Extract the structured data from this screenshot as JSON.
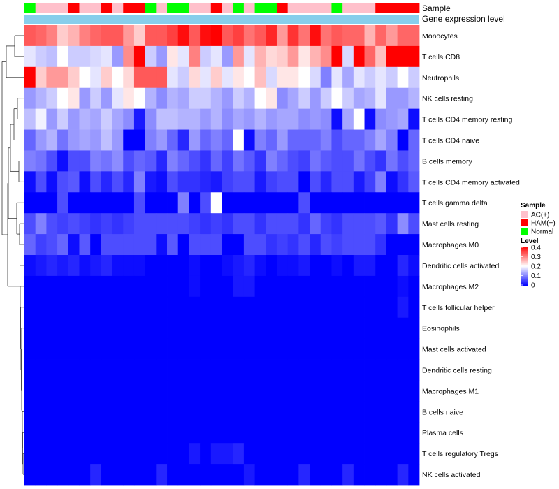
{
  "chart_data": {
    "type": "heatmap",
    "annotation_labels": [
      "Sample",
      "Gene expression level"
    ],
    "annotation_bar_color": "#87CEEB",
    "columns": 36,
    "sample_groups": [
      "Normal",
      "AC(+)",
      "AC(+)",
      "AC(+)",
      "HAM(+)",
      "AC(+)",
      "AC(+)",
      "HAM(+)",
      "AC(+)",
      "HAM(+)",
      "HAM(+)",
      "Normal",
      "AC(+)",
      "Normal",
      "Normal",
      "AC(+)",
      "AC(+)",
      "HAM(+)",
      "AC(+)",
      "Normal",
      "AC(+)",
      "Normal",
      "Normal",
      "HAM(+)",
      "AC(+)",
      "AC(+)",
      "AC(+)",
      "AC(+)",
      "Normal",
      "AC(+)",
      "AC(+)",
      "AC(+)",
      "HAM(+)",
      "HAM(+)",
      "HAM(+)",
      "HAM(+)"
    ],
    "rows": [
      "Monocytes",
      "T cells CD8",
      "Neutrophils",
      "NK cells resting",
      "T cells CD4 memory resting",
      "T cells CD4 naive",
      "B cells memory",
      "T cells CD4 memory activated",
      "T cells gamma delta",
      "Mast cells resting",
      "Macrophages M0",
      "Dendritic cells activated",
      "Macrophages M2",
      "T cells follicular helper",
      "Eosinophils",
      "Mast cells activated",
      "Dendritic cells resting",
      "Macrophages M1",
      "B cells naive",
      "Plasma cells",
      "T cells regulatory  Tregs",
      "NK cells activated"
    ],
    "values": [
      [
        0.33,
        0.32,
        0.3,
        0.24,
        0.26,
        0.3,
        0.32,
        0.33,
        0.33,
        0.28,
        0.24,
        0.33,
        0.33,
        0.35,
        0.39,
        0.33,
        0.39,
        0.4,
        0.33,
        0.35,
        0.31,
        0.33,
        0.37,
        0.28,
        0.36,
        0.31,
        0.39,
        0.31,
        0.33,
        0.32,
        0.32,
        0.26,
        0.32,
        0.28,
        0.32,
        0.32
      ],
      [
        0.18,
        0.16,
        0.15,
        0.2,
        0.16,
        0.16,
        0.17,
        0.18,
        0.12,
        0.29,
        0.4,
        0.16,
        0.12,
        0.22,
        0.18,
        0.3,
        0.16,
        0.18,
        0.12,
        0.28,
        0.18,
        0.26,
        0.23,
        0.24,
        0.28,
        0.22,
        0.26,
        0.29,
        0.4,
        0.17,
        0.4,
        0.32,
        0.25,
        0.4,
        0.4,
        0.4
      ],
      [
        0.4,
        0.24,
        0.28,
        0.28,
        0.24,
        0.2,
        0.18,
        0.24,
        0.2,
        0.23,
        0.33,
        0.33,
        0.33,
        0.18,
        0.16,
        0.23,
        0.18,
        0.24,
        0.18,
        0.22,
        0.2,
        0.25,
        0.17,
        0.22,
        0.22,
        0.2,
        0.17,
        0.1,
        0.18,
        0.13,
        0.18,
        0.16,
        0.18,
        0.16,
        0.2,
        0.16
      ],
      [
        0.12,
        0.14,
        0.16,
        0.2,
        0.22,
        0.12,
        0.16,
        0.12,
        0.18,
        0.22,
        0.2,
        0.14,
        0.11,
        0.14,
        0.13,
        0.16,
        0.16,
        0.14,
        0.12,
        0.16,
        0.14,
        0.2,
        0.22,
        0.11,
        0.13,
        0.16,
        0.12,
        0.16,
        0.2,
        0.16,
        0.13,
        0.14,
        0.18,
        0.12,
        0.12,
        0.14
      ],
      [
        0.15,
        0.19,
        0.12,
        0.16,
        0.12,
        0.14,
        0.13,
        0.16,
        0.13,
        0.11,
        0.02,
        0.11,
        0.15,
        0.15,
        0.14,
        0.14,
        0.12,
        0.14,
        0.11,
        0.13,
        0.12,
        0.14,
        0.12,
        0.13,
        0.13,
        0.11,
        0.12,
        0.11,
        0.01,
        0.13,
        0.2,
        0.01,
        0.11,
        0.12,
        0.13,
        0.01
      ],
      [
        0.08,
        0.12,
        0.14,
        0.09,
        0.12,
        0.13,
        0.12,
        0.15,
        0.12,
        0.0,
        0.0,
        0.1,
        0.12,
        0.08,
        0.03,
        0.12,
        0.08,
        0.1,
        0.08,
        0.2,
        0.01,
        0.1,
        0.08,
        0.12,
        0.08,
        0.08,
        0.08,
        0.1,
        0.06,
        0.08,
        0.08,
        0.1,
        0.13,
        0.1,
        0.0,
        0.08
      ],
      [
        0.1,
        0.09,
        0.06,
        0.01,
        0.06,
        0.06,
        0.1,
        0.09,
        0.11,
        0.06,
        0.08,
        0.07,
        0.03,
        0.1,
        0.08,
        0.06,
        0.04,
        0.08,
        0.05,
        0.09,
        0.07,
        0.04,
        0.1,
        0.08,
        0.06,
        0.05,
        0.09,
        0.07,
        0.06,
        0.06,
        0.09,
        0.06,
        0.04,
        0.09,
        0.06,
        0.08
      ],
      [
        0.01,
        0.06,
        0.01,
        0.06,
        0.07,
        0.01,
        0.06,
        0.03,
        0.06,
        0.03,
        0.1,
        0.02,
        0.01,
        0.06,
        0.04,
        0.04,
        0.03,
        0.02,
        0.05,
        0.06,
        0.06,
        0.02,
        0.05,
        0.06,
        0.06,
        0.0,
        0.06,
        0.03,
        0.06,
        0.06,
        0.02,
        0.05,
        0.1,
        0.01,
        0.04,
        0.07
      ],
      [
        0.0,
        0.0,
        0.0,
        0.06,
        0.0,
        0.0,
        0.0,
        0.0,
        0.0,
        0.0,
        0.06,
        0.0,
        0.0,
        0.0,
        0.1,
        0.0,
        0.06,
        0.2,
        0.0,
        0.0,
        0.0,
        0.0,
        0.0,
        0.0,
        0.0,
        0.06,
        0.0,
        0.0,
        0.0,
        0.0,
        0.0,
        0.0,
        0.0,
        0.0,
        0.0,
        0.0
      ],
      [
        0.06,
        0.1,
        0.06,
        0.05,
        0.06,
        0.05,
        0.04,
        0.05,
        0.04,
        0.05,
        0.06,
        0.06,
        0.06,
        0.06,
        0.06,
        0.05,
        0.04,
        0.05,
        0.04,
        0.06,
        0.06,
        0.04,
        0.06,
        0.06,
        0.06,
        0.04,
        0.08,
        0.05,
        0.04,
        0.06,
        0.06,
        0.06,
        0.07,
        0.04,
        0.11,
        0.06
      ],
      [
        0.08,
        0.05,
        0.06,
        0.08,
        0.01,
        0.07,
        0.0,
        0.06,
        0.06,
        0.06,
        0.06,
        0.06,
        0.01,
        0.07,
        0.0,
        0.06,
        0.06,
        0.06,
        0.0,
        0.0,
        0.06,
        0.06,
        0.04,
        0.05,
        0.04,
        0.06,
        0.03,
        0.06,
        0.05,
        0.06,
        0.06,
        0.06,
        0.04,
        0.0,
        0.0,
        0.0
      ],
      [
        0.01,
        0.02,
        0.03,
        0.02,
        0.03,
        0.01,
        0.02,
        0.03,
        0.01,
        0.01,
        0.01,
        0.0,
        0.0,
        0.0,
        0.0,
        0.01,
        0.0,
        0.0,
        0.01,
        0.02,
        0.03,
        0.01,
        0.0,
        0.01,
        0.01,
        0.02,
        0.0,
        0.0,
        0.01,
        0.0,
        0.02,
        0.02,
        0.0,
        0.0,
        0.03,
        0.01
      ],
      [
        0.0,
        0.0,
        0.0,
        0.0,
        0.0,
        0.0,
        0.0,
        0.0,
        0.0,
        0.0,
        0.0,
        0.0,
        0.0,
        0.0,
        0.0,
        0.01,
        0.0,
        0.0,
        0.0,
        0.02,
        0.02,
        0.0,
        0.0,
        0.0,
        0.0,
        0.0,
        0.0,
        0.0,
        0.0,
        0.0,
        0.0,
        0.0,
        0.0,
        0.0,
        0.01,
        0.0
      ],
      [
        0.0,
        0.0,
        0.0,
        0.0,
        0.0,
        0.0,
        0.0,
        0.0,
        0.0,
        0.0,
        0.0,
        0.0,
        0.0,
        0.0,
        0.0,
        0.0,
        0.0,
        0.0,
        0.0,
        0.0,
        0.0,
        0.0,
        0.0,
        0.0,
        0.0,
        0.0,
        0.0,
        0.0,
        0.0,
        0.0,
        0.0,
        0.0,
        0.0,
        0.0,
        0.02,
        0.0
      ],
      [
        0.0,
        0.0,
        0.0,
        0.0,
        0.0,
        0.0,
        0.0,
        0.0,
        0.0,
        0.0,
        0.0,
        0.0,
        0.0,
        0.0,
        0.0,
        0.0,
        0.0,
        0.0,
        0.0,
        0.0,
        0.0,
        0.0,
        0.0,
        0.0,
        0.0,
        0.0,
        0.0,
        0.0,
        0.0,
        0.0,
        0.0,
        0.0,
        0.0,
        0.0,
        0.0,
        0.0
      ],
      [
        0.0,
        0.0,
        0.0,
        0.0,
        0.0,
        0.0,
        0.0,
        0.0,
        0.0,
        0.0,
        0.0,
        0.0,
        0.0,
        0.0,
        0.0,
        0.0,
        0.0,
        0.0,
        0.0,
        0.0,
        0.0,
        0.0,
        0.0,
        0.0,
        0.0,
        0.0,
        0.0,
        0.0,
        0.0,
        0.0,
        0.0,
        0.0,
        0.0,
        0.0,
        0.0,
        0.0
      ],
      [
        0.0,
        0.0,
        0.0,
        0.0,
        0.0,
        0.0,
        0.0,
        0.0,
        0.0,
        0.0,
        0.0,
        0.0,
        0.0,
        0.0,
        0.0,
        0.0,
        0.0,
        0.0,
        0.0,
        0.0,
        0.0,
        0.0,
        0.0,
        0.0,
        0.0,
        0.0,
        0.0,
        0.0,
        0.0,
        0.0,
        0.0,
        0.0,
        0.0,
        0.0,
        0.0,
        0.0
      ],
      [
        0.0,
        0.0,
        0.0,
        0.0,
        0.0,
        0.0,
        0.0,
        0.0,
        0.0,
        0.0,
        0.0,
        0.0,
        0.0,
        0.0,
        0.0,
        0.0,
        0.0,
        0.0,
        0.0,
        0.0,
        0.0,
        0.0,
        0.0,
        0.0,
        0.0,
        0.0,
        0.0,
        0.0,
        0.0,
        0.0,
        0.0,
        0.0,
        0.0,
        0.0,
        0.0,
        0.0
      ],
      [
        0.0,
        0.0,
        0.0,
        0.0,
        0.0,
        0.0,
        0.0,
        0.0,
        0.0,
        0.0,
        0.0,
        0.0,
        0.0,
        0.0,
        0.0,
        0.0,
        0.0,
        0.0,
        0.0,
        0.0,
        0.0,
        0.0,
        0.0,
        0.0,
        0.0,
        0.0,
        0.0,
        0.0,
        0.0,
        0.0,
        0.0,
        0.0,
        0.0,
        0.0,
        0.0,
        0.0
      ],
      [
        0.0,
        0.0,
        0.0,
        0.0,
        0.0,
        0.0,
        0.0,
        0.0,
        0.0,
        0.0,
        0.0,
        0.0,
        0.0,
        0.0,
        0.0,
        0.0,
        0.0,
        0.0,
        0.0,
        0.0,
        0.0,
        0.0,
        0.0,
        0.0,
        0.0,
        0.0,
        0.0,
        0.0,
        0.0,
        0.0,
        0.0,
        0.0,
        0.0,
        0.0,
        0.0,
        0.0
      ],
      [
        0.0,
        0.0,
        0.0,
        0.0,
        0.0,
        0.0,
        0.0,
        0.0,
        0.0,
        0.0,
        0.0,
        0.0,
        0.0,
        0.0,
        0.0,
        0.02,
        0.0,
        0.02,
        0.02,
        0.03,
        0.0,
        0.0,
        0.0,
        0.0,
        0.0,
        0.0,
        0.0,
        0.0,
        0.0,
        0.0,
        0.0,
        0.0,
        0.0,
        0.0,
        0.0,
        0.0
      ],
      [
        0.0,
        0.0,
        0.0,
        0.0,
        0.0,
        0.0,
        0.03,
        0.0,
        0.0,
        0.0,
        0.0,
        0.0,
        0.03,
        0.0,
        0.0,
        0.0,
        0.0,
        0.0,
        0.0,
        0.0,
        0.02,
        0.0,
        0.0,
        0.0,
        0.0,
        0.03,
        0.0,
        0.0,
        0.0,
        0.03,
        0.0,
        0.0,
        0.0,
        0.0,
        0.03,
        0.0
      ]
    ],
    "legend": {
      "sample_title": "Sample",
      "sample_entries": [
        {
          "label": "AC(+)",
          "color": "#FFC0CB"
        },
        {
          "label": "HAM(+)",
          "color": "#FF0000"
        },
        {
          "label": "Normal",
          "color": "#00FF00"
        }
      ],
      "level_title": "Level",
      "level_ticks": [
        "0.4",
        "0.3",
        "0.2",
        "0.1",
        "0"
      ],
      "level_range": [
        0,
        0.4
      ]
    },
    "colors": {
      "low": "#0000FF",
      "mid": "#FFFFFF",
      "high": "#FF0000"
    }
  }
}
